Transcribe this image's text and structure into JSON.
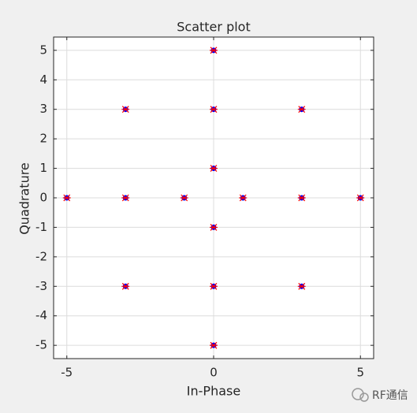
{
  "chart_data": {
    "type": "scatter",
    "title": "Scatter plot",
    "x_label": "In-Phase",
    "y_label": "Quadrature",
    "series": [
      {
        "color": "#0000ff",
        "edge_color": "#ff0000",
        "x": [
          0,
          -3,
          0,
          3,
          0,
          -5,
          -3,
          -1,
          1,
          3,
          5,
          0,
          -3,
          0,
          3,
          0
        ],
        "values": [
          5,
          3,
          3,
          3,
          1,
          0,
          0,
          0,
          0,
          0,
          0,
          -1,
          -3,
          -3,
          -3,
          -5
        ]
      }
    ],
    "xlim": [
      -5.45,
      5.45
    ],
    "ylim": [
      -5.45,
      5.45
    ],
    "xticks": [
      -5,
      0,
      5
    ],
    "yticks": [
      -5,
      -4,
      -3,
      -2,
      -1,
      0,
      1,
      2,
      3,
      4,
      5
    ],
    "grid": true
  },
  "watermark": "RF通信"
}
